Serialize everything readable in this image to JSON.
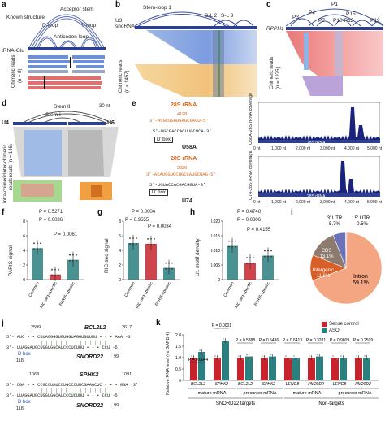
{
  "panels": {
    "a": {
      "label": "a",
      "structure_title": "Known structure",
      "acceptor_stem": "Acceptor stem",
      "d_loop": "D-loop",
      "anticodon_loop": "Anticodon loop",
      "t_loop": "T-loop",
      "rna": "tRNA-Glu",
      "reads_label": "Chimeric reads",
      "reads_n": "(n = 8)"
    },
    "b": {
      "label": "b",
      "stem_loop": "Stem-loop 1",
      "sl2": "S-L 2",
      "sl3": "S-L 3",
      "rna": "U3 snoRNA",
      "reads_label": "Chimeric reads",
      "reads_n": "(n = 1457)"
    },
    "c": {
      "label": "c",
      "p1": "P1",
      "p2": "P2",
      "p3": "P3",
      "p7": "P7",
      "p10p12": "P10-P12",
      "p15": "P15",
      "p19": "P19",
      "rna": "RPPH1",
      "reads_label": "Chimeric reads",
      "reads_n": "(n = 1275)"
    },
    "d": {
      "label": "d",
      "stem2": "Stem II",
      "stem1": "Stem I",
      "scale": "30 nt",
      "u4": "U4",
      "u6": "U6",
      "inter_label": "Inter-chimeric",
      "inter_n": "reads (n = 146)",
      "intra_label": "Intra-chimeric",
      "intra_n": "reads"
    },
    "e": {
      "label": "e",
      "rrna1": "28S rRNA",
      "pos1": "4198",
      "seq1_top": "3'-ACGCUGGUGAGCGAGU-5'",
      "seq1_bot": "5'-UGCGACCACUUGCUCA-3'",
      "dbox": "D' box",
      "sno1": "U58A",
      "rrna2": "28S rRNA",
      "pos2": "3826",
      "seq2_top": "3'-ACAUGGUGCUGCCAUGCUAG-5'",
      "seq2_bot": "5'-UGUACCACGACGGUA-3'",
      "sno2": "U74",
      "cov_label1": "U58A-28S rRNA coverage",
      "cov_label2": "U74-28S rRNA coverage",
      "axis_bar": "28S rRNA",
      "ticks": [
        "0 nt",
        "1,000 nt",
        "2,000 nt",
        "3,000 nt",
        "4,000 nt",
        "5,000 nt"
      ]
    },
    "f": {
      "label": "f",
      "ylabel": "PARIS signal",
      "p1": "P = 0.5271",
      "p2": "P = 0.0036",
      "p3": "P = 0.0061",
      "cats": [
        "Common",
        "RIC-seq-specific",
        "PARIS-specific"
      ],
      "yticks": [
        "0",
        "2",
        "4",
        "6",
        "8",
        "40",
        "80"
      ],
      "break": "ace"
    },
    "g": {
      "label": "g",
      "ylabel": "RIC-seq signal",
      "p1": "P = 0.0004",
      "p2": "P = 0.9555",
      "p3": "P = 0.0034",
      "cats": [
        "Common",
        "RIC-seq-specific",
        "PARIS-specific"
      ],
      "yticks": [
        "0",
        "2",
        "4",
        "6",
        "8"
      ]
    },
    "h": {
      "label": "h",
      "ylabel": "U1 motif density",
      "p1": "P = 0.4740",
      "p2": "P = 0.0306",
      "p3": "P = 0.4155",
      "cats": [
        "Common",
        "RIC-seq-specific",
        "PARIS-specific"
      ],
      "yticks": [
        "0",
        "0.005",
        "0.010",
        "0.015",
        "0.020"
      ]
    },
    "i": {
      "label": "i",
      "slices": [
        {
          "name": "Intron",
          "pct": "69.1%",
          "value": 69.1,
          "color": "#f4a582"
        },
        {
          "name": "Intergenic",
          "pct": "11.6%",
          "value": 11.6,
          "color": "#d95f29"
        },
        {
          "name": "CDS",
          "pct": "13.1%",
          "value": 13.1,
          "color": "#8c7b6e"
        },
        {
          "name": "3' UTR",
          "pct": "5.7%",
          "value": 5.7,
          "color": "#6c72b8"
        },
        {
          "name": "5' UTR",
          "pct": "0.5%",
          "value": 0.5,
          "color": "#a8b8d8"
        }
      ]
    },
    "j": {
      "label": "j",
      "gene1": "BCL2L2",
      "pos1a": "2599",
      "pos1b": "2617",
      "seq1": "5'- AUC • • CUUAGGGGUGUGGUAGGUGUUUU • • • AAA -3'",
      "seq1b": "3'- UUAGGAUGCUGGUGGCAUCCCUCUUU • • • CCU -5'",
      "sno1": "SNORD22",
      "num1a": "118",
      "num1b": "99",
      "gene2": "SPHK2",
      "pos2a": "1068",
      "pos2b": "1091",
      "seq2": "5'- CGA • • CCGCCUAUCCUGCCCUUCGAAGCUC • • • GGA -3'",
      "seq2b": "3'- UUAGGAUGCUGGUGGCAUCCCUCUUU • • • CCU -5'",
      "sno2": "SNORD22",
      "num2a": "118",
      "num2b": "99",
      "dbox": "D box"
    },
    "k": {
      "label": "k",
      "ylabel": "Relative RNA level (vs GAPDH)",
      "legend": [
        "Sense control",
        "ASO"
      ],
      "pvals": [
        "P = 0.0044",
        "P = 0.0001",
        "P = 0.5388",
        "P = 0.5436",
        "P = 0.6413",
        "P = 0.3281",
        "P = 0.9809",
        "P = 0.2599"
      ],
      "cats": [
        "BCL2L2",
        "SPHK2",
        "BCL2L2",
        "SPHK2",
        "LENG8",
        "PM20D2",
        "LENG8",
        "PM20D2"
      ],
      "group1": "mature mRNA",
      "group2": "precursor mRNA",
      "group3": "mature mRNA",
      "group4": "precursor mRNA",
      "targets": "SNORD22 targets",
      "nontargets": "Non-targets",
      "yticks": [
        "0",
        "0.5",
        "1.0",
        "1.5",
        "2.0"
      ]
    }
  },
  "chart_data": [
    {
      "type": "bar",
      "panel": "f",
      "categories": [
        "Common",
        "RIC-seq-specific",
        "PARIS-specific"
      ],
      "values": [
        4.3,
        0.7,
        2.7
      ],
      "ylabel": "PARIS signal"
    },
    {
      "type": "bar",
      "panel": "g",
      "categories": [
        "Common",
        "RIC-seq-specific",
        "PARIS-specific"
      ],
      "values": [
        5.0,
        4.9,
        1.6
      ],
      "ylabel": "RIC-seq signal",
      "ylim": [
        0,
        8
      ]
    },
    {
      "type": "bar",
      "panel": "h",
      "categories": [
        "Common",
        "RIC-seq-specific",
        "PARIS-specific"
      ],
      "values": [
        0.0115,
        0.0058,
        0.0082
      ],
      "ylabel": "U1 motif density",
      "ylim": [
        0,
        0.02
      ]
    },
    {
      "type": "pie",
      "panel": "i",
      "labels": [
        "Intron",
        "Intergenic",
        "CDS",
        "3' UTR",
        "5' UTR"
      ],
      "values": [
        69.1,
        11.6,
        13.1,
        5.7,
        0.5
      ]
    },
    {
      "type": "bar",
      "panel": "k",
      "categories": [
        "BCL2L2",
        "SPHK2",
        "BCL2L2",
        "SPHK2",
        "LENG8",
        "PM20D2",
        "LENG8",
        "PM20D2"
      ],
      "series": [
        {
          "name": "Sense control",
          "values": [
            1.0,
            1.0,
            1.0,
            1.0,
            1.0,
            1.0,
            1.0,
            1.0
          ]
        },
        {
          "name": "ASO",
          "values": [
            1.25,
            1.75,
            1.05,
            1.05,
            1.0,
            1.05,
            1.0,
            1.0
          ]
        }
      ],
      "ylim": [
        0,
        2.0
      ]
    }
  ]
}
